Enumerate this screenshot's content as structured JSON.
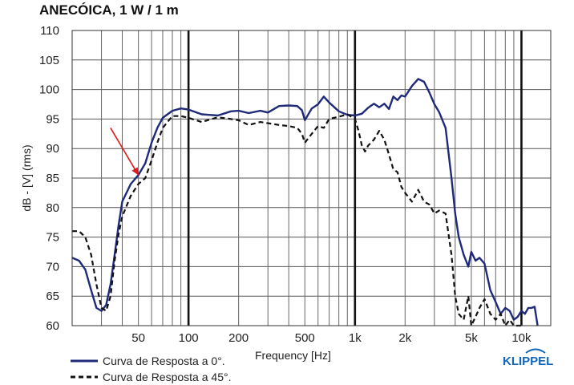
{
  "chart_data": {
    "type": "line",
    "title": "ANECÓICA, 1 W / 1 m",
    "xlabel": "Frequency [Hz]",
    "ylabel": "dB - [V] (rms)",
    "x_scale": "log",
    "xlim": [
      20,
      15000
    ],
    "ylim": [
      60,
      110
    ],
    "y_ticks": [
      60,
      65,
      70,
      75,
      80,
      85,
      90,
      95,
      100,
      105,
      110
    ],
    "x_ticks": [
      {
        "value": 50,
        "label": "50"
      },
      {
        "value": 100,
        "label": "100"
      },
      {
        "value": 200,
        "label": "200"
      },
      {
        "value": 500,
        "label": "500"
      },
      {
        "value": 1000,
        "label": "1k"
      },
      {
        "value": 2000,
        "label": "2k"
      },
      {
        "value": 5000,
        "label": "5k"
      },
      {
        "value": 10000,
        "label": "10k"
      }
    ],
    "grid": true,
    "legend_position": "bottom-left",
    "series": [
      {
        "name": "Curva de Resposta a 0°.",
        "color": "#1f2a7a",
        "dash": "solid",
        "x": [
          20,
          22,
          24,
          26,
          28,
          30,
          32,
          34,
          36,
          38,
          40,
          45,
          50,
          55,
          60,
          65,
          70,
          80,
          90,
          100,
          120,
          150,
          180,
          200,
          230,
          270,
          300,
          350,
          400,
          450,
          480,
          500,
          550,
          600,
          650,
          700,
          800,
          900,
          1000,
          1100,
          1200,
          1300,
          1400,
          1500,
          1600,
          1700,
          1800,
          1900,
          2000,
          2200,
          2400,
          2600,
          2800,
          3000,
          3200,
          3500,
          3800,
          4000,
          4200,
          4500,
          4800,
          5000,
          5300,
          5600,
          6000,
          6500,
          7000,
          7500,
          8000,
          8500,
          9000,
          9500,
          10000,
          10500,
          11000,
          11500,
          12000,
          12500
        ],
        "y": [
          71.5,
          71,
          69.5,
          66,
          63,
          62.5,
          63.5,
          67,
          72,
          77,
          81,
          84,
          85.5,
          87.5,
          91,
          93.5,
          95.2,
          96.4,
          96.8,
          96.6,
          95.8,
          95.6,
          96.3,
          96.4,
          96.0,
          96.4,
          96.1,
          97.2,
          97.3,
          97.2,
          96.5,
          94.8,
          96.8,
          97.5,
          98.8,
          97.8,
          96.3,
          95.7,
          95.6,
          95.9,
          96.9,
          97.6,
          97.0,
          97.6,
          96.7,
          98.8,
          98.2,
          99.0,
          98.8,
          100.6,
          101.8,
          101.3,
          99.5,
          97.5,
          96.2,
          93.5,
          85.0,
          79.0,
          75.0,
          72.0,
          70.0,
          72.5,
          71.0,
          71.5,
          70.5,
          66.0,
          64.0,
          62.0,
          63.0,
          62.5,
          61.0,
          61.5,
          62.5,
          62.0,
          63.0,
          63.0,
          63.2,
          60.0
        ]
      },
      {
        "name": "Curva de Resposta a 45°.",
        "color": "#111111",
        "dash": "dashed",
        "x": [
          20,
          22,
          24,
          26,
          28,
          30,
          32,
          34,
          36,
          38,
          40,
          45,
          50,
          55,
          60,
          65,
          70,
          80,
          90,
          100,
          120,
          150,
          180,
          200,
          230,
          270,
          300,
          350,
          400,
          450,
          480,
          500,
          550,
          600,
          650,
          700,
          800,
          900,
          1000,
          1050,
          1100,
          1150,
          1200,
          1300,
          1400,
          1500,
          1600,
          1700,
          1800,
          1900,
          2000,
          2200,
          2400,
          2600,
          2800,
          3000,
          3200,
          3500,
          3800,
          4000,
          4200,
          4500,
          4800,
          5000,
          5300,
          5600,
          6000,
          6500,
          7000,
          7500,
          8000,
          8500,
          9000,
          10000
        ],
        "y": [
          76,
          76,
          75,
          72,
          67,
          63,
          62.5,
          65,
          71,
          75.5,
          78.5,
          82,
          84,
          85,
          88,
          91,
          93.5,
          95.5,
          95.5,
          95.2,
          94.5,
          95.3,
          95.0,
          94.8,
          94.0,
          94.5,
          94.3,
          94.0,
          93.8,
          93.5,
          92.5,
          91.0,
          92.5,
          93.8,
          93.5,
          95.0,
          95.4,
          95.8,
          95.0,
          93.0,
          90.5,
          89.5,
          90.5,
          91.5,
          93.0,
          91.5,
          89.0,
          86.5,
          86.0,
          83.5,
          82.5,
          81.0,
          83.0,
          81.0,
          80.5,
          79.0,
          79.5,
          79.0,
          72.0,
          65.0,
          62.0,
          61.0,
          65.0,
          60.0,
          61.5,
          63.0,
          64.5,
          62.0,
          61.0,
          62.0,
          60.0,
          61.0,
          60.0,
          60.0
        ]
      }
    ],
    "annotations": [
      {
        "type": "arrow",
        "color": "#e01b1b",
        "from": {
          "x": 34,
          "y": 93.5
        },
        "to": {
          "x": 50,
          "y": 85.5
        }
      }
    ]
  },
  "brand": {
    "name": "KLIPPEL",
    "color": "#1565b8"
  }
}
